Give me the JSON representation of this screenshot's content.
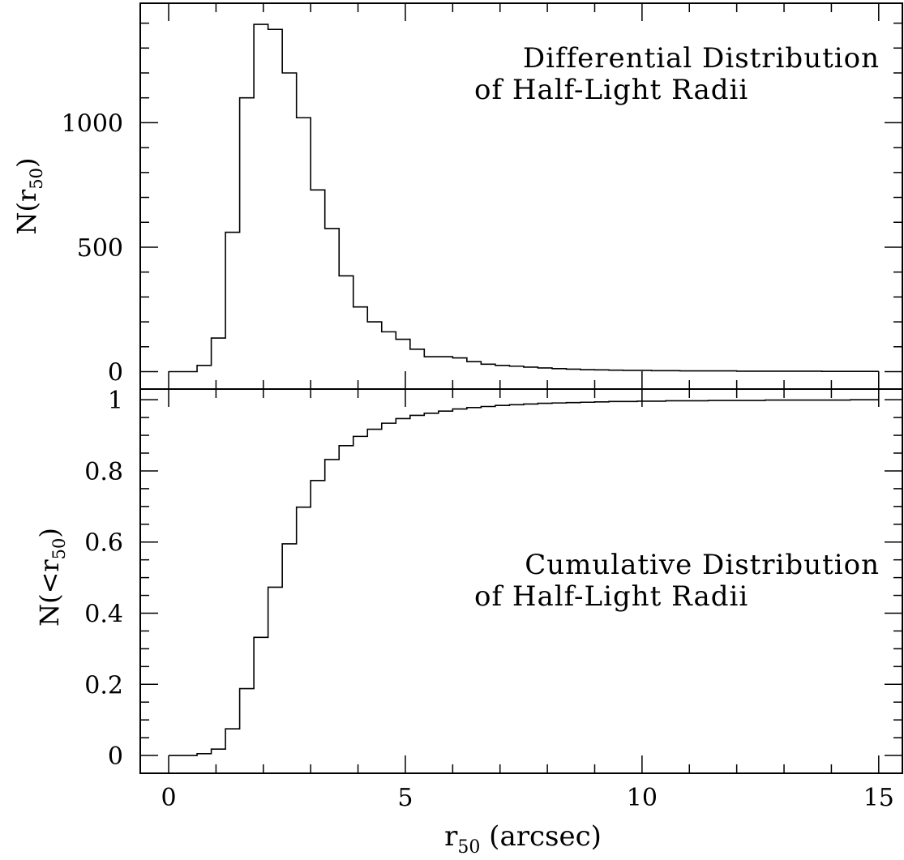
{
  "chart_data": [
    {
      "type": "histogram",
      "panel": "top",
      "title_lines": [
        "Differential Distribution",
        "of Half-Light Radii"
      ],
      "ylabel": "N(r50)",
      "ylabel_main": "N(r",
      "ylabel_sub": "50",
      "ylabel_close": ")",
      "xlim": [
        -0.6,
        15.5
      ],
      "ylim": [
        -70,
        1480
      ],
      "bin_width": 0.3,
      "y_ticks": [
        0,
        500,
        1000
      ],
      "y_tick_labels": [
        "0",
        "500",
        "1000"
      ],
      "bin_edges": [
        0,
        0.3,
        0.6,
        0.9,
        1.2,
        1.5,
        1.8,
        2.1,
        2.4,
        2.7,
        3.0,
        3.3,
        3.6,
        3.9,
        4.2,
        4.5,
        4.8,
        5.1,
        5.4,
        5.7,
        6.0,
        6.3,
        6.6,
        6.9,
        7.2,
        7.5,
        7.8,
        8.1,
        8.4,
        8.7,
        9.0,
        9.3,
        9.6,
        9.9,
        10.2,
        10.5,
        10.8,
        11.1,
        11.4,
        11.7,
        12.0,
        12.3,
        12.6,
        12.9,
        13.2,
        13.5,
        13.8,
        14.1,
        14.4,
        14.7,
        15.0
      ],
      "values": [
        0,
        0,
        25,
        135,
        560,
        1100,
        1395,
        1375,
        1200,
        1020,
        730,
        575,
        385,
        260,
        200,
        160,
        130,
        90,
        60,
        60,
        55,
        40,
        30,
        25,
        22,
        18,
        15,
        12,
        10,
        8,
        7,
        6,
        5,
        5,
        4,
        4,
        3,
        3,
        3,
        3,
        2,
        2,
        2,
        2,
        2,
        2,
        1,
        1,
        1,
        1
      ],
      "vlines_x": [
        10,
        15
      ]
    },
    {
      "type": "histogram",
      "panel": "bottom",
      "title_lines": [
        "Cumulative Distribution",
        "of Half-Light Radii"
      ],
      "ylabel": "N(<r50)",
      "ylabel_main": "N(<r",
      "ylabel_sub": "50",
      "ylabel_close": ")",
      "xlabel": "r50 (arcsec)",
      "xlabel_main": "r",
      "xlabel_sub": "50",
      "xlabel_rest": " (arcsec)",
      "xlim": [
        -0.6,
        15.5
      ],
      "ylim": [
        -0.05,
        1.03
      ],
      "bin_width": 0.3,
      "x_ticks": [
        0,
        5,
        10,
        15
      ],
      "x_tick_labels": [
        "0",
        "5",
        "10",
        "15"
      ],
      "y_ticks": [
        0,
        0.2,
        0.4,
        0.6,
        0.8,
        1
      ],
      "y_tick_labels": [
        "0",
        "0.2",
        "0.4",
        "0.6",
        "0.8",
        "1"
      ],
      "bin_edges": [
        0,
        0.3,
        0.6,
        0.9,
        1.2,
        1.5,
        1.8,
        2.1,
        2.4,
        2.7,
        3.0,
        3.3,
        3.6,
        3.9,
        4.2,
        4.5,
        4.8,
        5.1,
        5.4,
        5.7,
        6.0,
        6.3,
        6.6,
        6.9,
        7.2,
        7.5,
        7.8,
        8.1,
        8.4,
        8.7,
        9.0,
        9.3,
        9.6,
        9.9,
        10.2,
        10.5,
        10.8,
        11.1,
        11.4,
        11.7,
        12.0,
        12.3,
        12.6,
        12.9,
        13.2,
        13.5,
        13.8,
        14.1,
        14.4,
        14.7,
        15.0
      ],
      "values": [
        0,
        0,
        0.005,
        0.018,
        0.075,
        0.188,
        0.332,
        0.473,
        0.595,
        0.698,
        0.773,
        0.832,
        0.871,
        0.897,
        0.917,
        0.934,
        0.947,
        0.956,
        0.962,
        0.968,
        0.974,
        0.978,
        0.981,
        0.984,
        0.986,
        0.988,
        0.99,
        0.991,
        0.992,
        0.993,
        0.994,
        0.995,
        0.995,
        0.996,
        0.996,
        0.997,
        0.997,
        0.997,
        0.998,
        0.998,
        0.998,
        0.998,
        0.999,
        0.999,
        0.999,
        0.999,
        0.999,
        0.999,
        1.0,
        1.0
      ],
      "vlines_x": [
        10,
        15
      ]
    }
  ]
}
